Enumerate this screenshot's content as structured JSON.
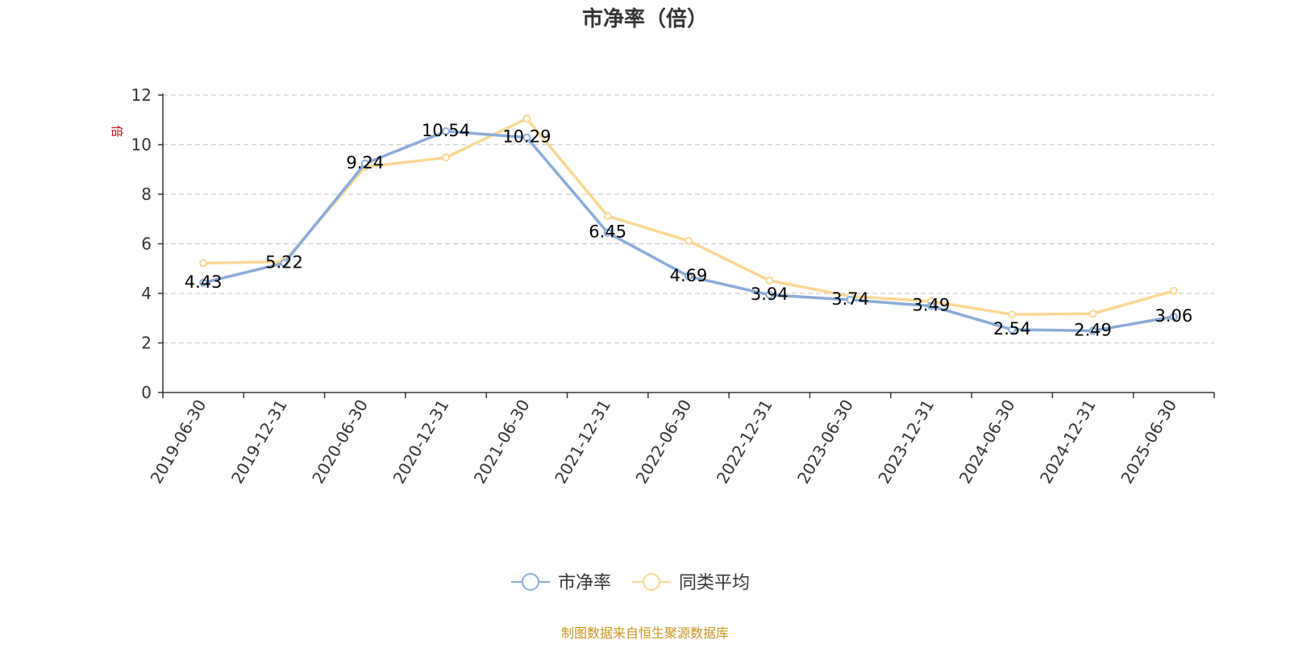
{
  "chart_data": {
    "type": "line",
    "title": "市净率（倍）",
    "ylabel": "倍",
    "ylim": [
      0,
      12
    ],
    "yticks": [
      "0",
      "2",
      "4",
      "6",
      "8",
      "10",
      "12"
    ],
    "grid": true,
    "legend_position": "bottom",
    "categories": [
      "2019-06-30",
      "2019-12-31",
      "2020-06-30",
      "2020-12-31",
      "2021-06-30",
      "2021-12-31",
      "2022-06-30",
      "2022-12-31",
      "2023-06-30",
      "2023-12-31",
      "2024-06-30",
      "2024-12-31",
      "2025-06-30"
    ],
    "series": [
      {
        "name": "市净率",
        "color": "#8aabd8",
        "values": [
          4.43,
          5.22,
          9.24,
          10.54,
          10.29,
          6.45,
          4.69,
          3.94,
          3.74,
          3.49,
          2.54,
          2.49,
          3.06
        ],
        "labels": [
          "4.43",
          "5.22",
          "9.24",
          "10.54",
          "10.29",
          "6.45",
          "4.69",
          "3.94",
          "3.74",
          "3.49",
          "2.54",
          "2.49",
          "3.06"
        ]
      },
      {
        "name": "同类平均",
        "color": "#fbd792",
        "values": [
          5.22,
          5.28,
          9.1,
          9.48,
          11.05,
          7.12,
          6.12,
          4.52,
          3.88,
          3.68,
          3.15,
          3.18,
          4.1
        ]
      }
    ],
    "source": "制图数据来自恒生聚源数据库"
  }
}
